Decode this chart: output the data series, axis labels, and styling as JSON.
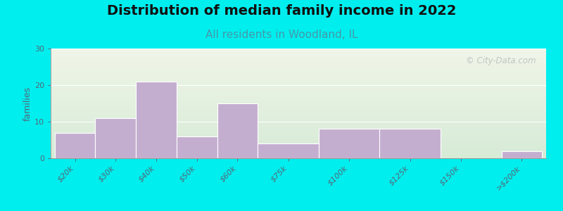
{
  "title": "Distribution of median family income in 2022",
  "subtitle": "All residents in Woodland, IL",
  "ylabel": "families",
  "bar_color": "#c4aed0",
  "bar_edge_color": "#ffffff",
  "background_color": "#00eeee",
  "title_fontsize": 14,
  "subtitle_fontsize": 11,
  "subtitle_color": "#4499aa",
  "ylabel_fontsize": 9,
  "tick_label_fontsize": 8,
  "ylim": [
    0,
    30
  ],
  "yticks": [
    0,
    10,
    20,
    30
  ],
  "watermark_text": "© City-Data.com",
  "watermark_color": "#bbbbbb",
  "categories": [
    "$20k",
    "$30k",
    "$40k",
    "$50k",
    "$60k",
    "$75k",
    "$100k",
    "$125k",
    "$150k",
    ">$200k"
  ],
  "values": [
    7,
    11,
    21,
    6,
    15,
    4,
    8,
    8,
    0,
    2
  ],
  "bar_lefts": [
    0,
    1,
    2,
    3,
    4,
    5,
    6.5,
    8,
    9.5,
    11
  ],
  "bar_widths": [
    1,
    1,
    1,
    1,
    1,
    1.5,
    1.5,
    1.5,
    1,
    1
  ],
  "tick_positions": [
    0.5,
    1.5,
    2.5,
    3.5,
    4.5,
    5.75,
    7.25,
    8.75,
    10,
    11.5
  ],
  "plot_bg_top_color": "#f0f5e8",
  "plot_bg_bottom_color": "#d5ecd5",
  "xlim": [
    -0.1,
    12.1
  ]
}
